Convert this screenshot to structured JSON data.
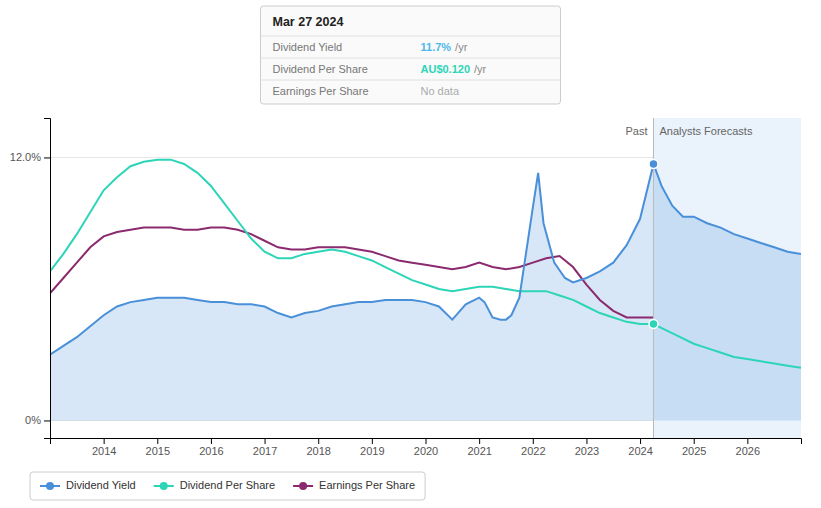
{
  "chart_data": {
    "type": "line",
    "xlim": [
      2013.0,
      2027.0
    ],
    "xticks": [
      2014,
      2015,
      2016,
      2017,
      2018,
      2019,
      2020,
      2021,
      2022,
      2023,
      2024,
      2025,
      2026
    ],
    "ylim": [
      -0.008,
      0.138
    ],
    "yticks": [
      {
        "value": 0.0,
        "label": "0%"
      },
      {
        "value": 0.12,
        "label": "12.0%"
      }
    ],
    "grid": true,
    "legend": "bottom",
    "series": [
      {
        "name": "Dividend Yield",
        "type": "area",
        "color": "#4a90d9",
        "x": [
          2013.0,
          2013.25,
          2013.5,
          2013.75,
          2014.0,
          2014.25,
          2014.5,
          2014.75,
          2015.0,
          2015.25,
          2015.5,
          2015.75,
          2016.0,
          2016.25,
          2016.5,
          2016.75,
          2017.0,
          2017.25,
          2017.5,
          2017.75,
          2018.0,
          2018.25,
          2018.5,
          2018.75,
          2019.0,
          2019.25,
          2019.5,
          2019.75,
          2020.0,
          2020.25,
          2020.5,
          2020.75,
          2021.0,
          2021.1,
          2021.25,
          2021.4,
          2021.5,
          2021.6,
          2021.75,
          2022.0,
          2022.1,
          2022.2,
          2022.4,
          2022.6,
          2022.75,
          2023.0,
          2023.25,
          2023.5,
          2023.75,
          2024.0,
          2024.25,
          2024.4,
          2024.6,
          2024.8,
          2025.0,
          2025.25,
          2025.5,
          2025.75,
          2026.0,
          2026.25,
          2026.5,
          2026.75,
          2027.0
        ],
        "values": [
          0.03,
          0.034,
          0.038,
          0.043,
          0.048,
          0.052,
          0.054,
          0.055,
          0.056,
          0.056,
          0.056,
          0.055,
          0.054,
          0.054,
          0.053,
          0.053,
          0.052,
          0.049,
          0.047,
          0.049,
          0.05,
          0.052,
          0.053,
          0.054,
          0.054,
          0.055,
          0.055,
          0.055,
          0.054,
          0.052,
          0.046,
          0.053,
          0.056,
          0.054,
          0.047,
          0.046,
          0.046,
          0.048,
          0.056,
          0.097,
          0.113,
          0.09,
          0.072,
          0.065,
          0.063,
          0.065,
          0.068,
          0.072,
          0.08,
          0.092,
          0.117,
          0.107,
          0.098,
          0.093,
          0.093,
          0.09,
          0.088,
          0.085,
          0.083,
          0.081,
          0.079,
          0.077,
          0.076
        ],
        "highlight": {
          "x": 2024.25,
          "value": 0.117
        }
      },
      {
        "name": "Dividend Per Share",
        "type": "line",
        "color": "#2dd5b8",
        "x": [
          2013.0,
          2013.25,
          2013.5,
          2013.75,
          2014.0,
          2014.25,
          2014.5,
          2014.75,
          2015.0,
          2015.25,
          2015.5,
          2015.75,
          2016.0,
          2016.25,
          2016.5,
          2016.75,
          2017.0,
          2017.25,
          2017.5,
          2017.75,
          2018.0,
          2018.25,
          2018.5,
          2018.75,
          2019.0,
          2019.25,
          2019.5,
          2019.75,
          2020.0,
          2020.25,
          2020.5,
          2020.75,
          2021.0,
          2021.25,
          2021.5,
          2021.75,
          2022.0,
          2022.25,
          2022.5,
          2022.75,
          2023.0,
          2023.25,
          2023.5,
          2023.75,
          2024.0,
          2024.25,
          2024.5,
          2024.75,
          2025.0,
          2025.25,
          2025.5,
          2025.75,
          2026.0,
          2026.25,
          2026.5,
          2026.75,
          2027.0
        ],
        "values": [
          0.068,
          0.076,
          0.085,
          0.095,
          0.105,
          0.111,
          0.116,
          0.118,
          0.119,
          0.119,
          0.117,
          0.113,
          0.107,
          0.099,
          0.091,
          0.083,
          0.077,
          0.074,
          0.074,
          0.076,
          0.077,
          0.078,
          0.077,
          0.075,
          0.073,
          0.07,
          0.067,
          0.064,
          0.062,
          0.06,
          0.059,
          0.06,
          0.061,
          0.061,
          0.06,
          0.059,
          0.059,
          0.059,
          0.057,
          0.055,
          0.052,
          0.049,
          0.047,
          0.045,
          0.044,
          0.044,
          0.041,
          0.038,
          0.035,
          0.033,
          0.031,
          0.029,
          0.028,
          0.027,
          0.026,
          0.025,
          0.024
        ],
        "highlight": {
          "x": 2024.25,
          "value": 0.044
        }
      },
      {
        "name": "Earnings Per Share",
        "type": "line",
        "color": "#8b2a6e",
        "x": [
          2013.0,
          2013.25,
          2013.5,
          2013.75,
          2014.0,
          2014.25,
          2014.5,
          2014.75,
          2015.0,
          2015.25,
          2015.5,
          2015.75,
          2016.0,
          2016.25,
          2016.5,
          2016.75,
          2017.0,
          2017.25,
          2017.5,
          2017.75,
          2018.0,
          2018.25,
          2018.5,
          2018.75,
          2019.0,
          2019.25,
          2019.5,
          2019.75,
          2020.0,
          2020.25,
          2020.5,
          2020.75,
          2021.0,
          2021.25,
          2021.5,
          2021.75,
          2022.0,
          2022.25,
          2022.5,
          2022.75,
          2023.0,
          2023.25,
          2023.5,
          2023.75,
          2024.0,
          2024.25
        ],
        "values": [
          0.058,
          0.065,
          0.072,
          0.079,
          0.084,
          0.086,
          0.087,
          0.088,
          0.088,
          0.088,
          0.087,
          0.087,
          0.088,
          0.088,
          0.087,
          0.085,
          0.082,
          0.079,
          0.078,
          0.078,
          0.079,
          0.079,
          0.079,
          0.078,
          0.077,
          0.075,
          0.073,
          0.072,
          0.071,
          0.07,
          0.069,
          0.07,
          0.072,
          0.07,
          0.069,
          0.07,
          0.072,
          0.074,
          0.075,
          0.07,
          0.062,
          0.055,
          0.05,
          0.047,
          0.047,
          0.047
        ]
      }
    ],
    "divider": {
      "x": 2024.25,
      "left_label": "Past",
      "right_label": "Analysts Forecasts"
    },
    "tooltip": {
      "title": "Mar 27 2024",
      "rows": [
        {
          "label": "Dividend Yield",
          "value": "11.7%",
          "unit": "/yr",
          "color": "#4db8e8"
        },
        {
          "label": "Dividend Per Share",
          "value": "AU$0.120",
          "unit": "/yr",
          "color": "#2dd5b8"
        },
        {
          "label": "Earnings Per Share",
          "value": "No data",
          "color": "#aaaaaa"
        }
      ]
    }
  }
}
